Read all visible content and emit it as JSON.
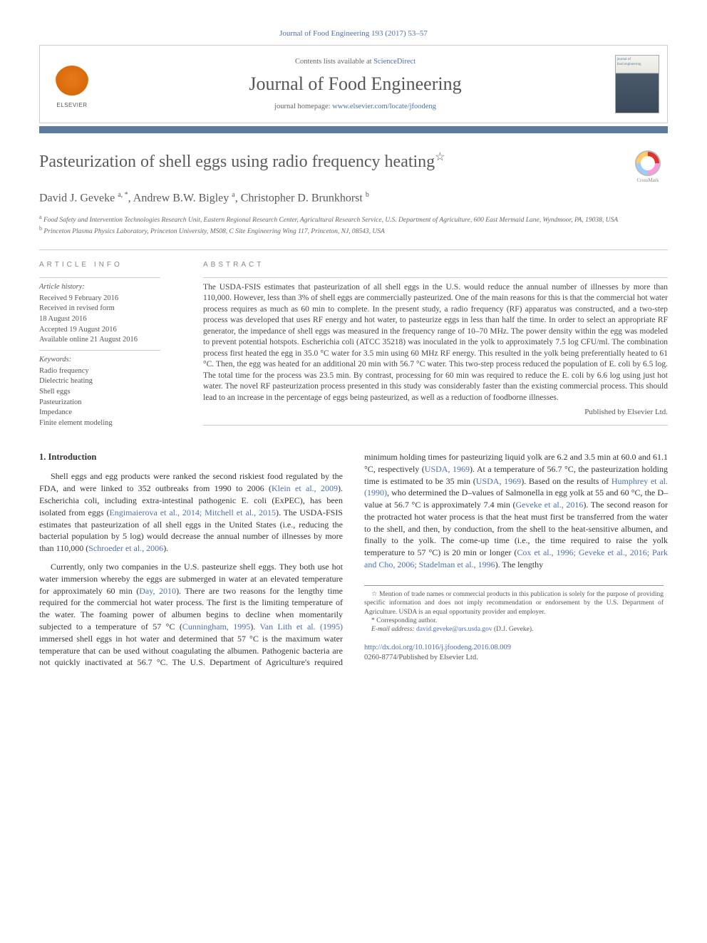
{
  "citation_top": "Journal of Food Engineering 193 (2017) 53–57",
  "banner": {
    "contents_prefix": "Contents lists available at ",
    "contents_link": "ScienceDirect",
    "journal_name": "Journal of Food Engineering",
    "homepage_prefix": "journal homepage: ",
    "homepage_link": "www.elsevier.com/locate/jfoodeng",
    "elsevier_label": "ELSEVIER",
    "cover_label_top": "journal of",
    "cover_label_bottom": "food engineering"
  },
  "title": "Pasteurization of shell eggs using radio frequency heating",
  "title_star": "☆",
  "crossmark_label": "CrossMark",
  "authors_html": "David J. Geveke <sup>a, *</sup>, Andrew B.W. Bigley <sup>a</sup>, Christopher D. Brunkhorst <sup>b</sup>",
  "affiliations": [
    "a Food Safety and Intervention Technologies Research Unit, Eastern Regional Research Center, Agricultural Research Service, U.S. Department of Agriculture, 600 East Mermaid Lane, Wyndmoor, PA, 19038, USA",
    "b Princeton Plasma Physics Laboratory, Princeton University, MS08, C Site Engineering Wing 117, Princeton, NJ, 08543, USA"
  ],
  "article_info": {
    "heading": "ARTICLE INFO",
    "history_label": "Article history:",
    "history": [
      "Received 9 February 2016",
      "Received in revised form",
      "18 August 2016",
      "Accepted 19 August 2016",
      "Available online 21 August 2016"
    ],
    "keywords_label": "Keywords:",
    "keywords": [
      "Radio frequency",
      "Dielectric heating",
      "Shell eggs",
      "Pasteurization",
      "Impedance",
      "Finite element modeling"
    ]
  },
  "abstract": {
    "heading": "ABSTRACT",
    "text": "The USDA-FSIS estimates that pasteurization of all shell eggs in the U.S. would reduce the annual number of illnesses by more than 110,000. However, less than 3% of shell eggs are commercially pasteurized. One of the main reasons for this is that the commercial hot water process requires as much as 60 min to complete. In the present study, a radio frequency (RF) apparatus was constructed, and a two-step process was developed that uses RF energy and hot water, to pasteurize eggs in less than half the time. In order to select an appropriate RF generator, the impedance of shell eggs was measured in the frequency range of 10–70 MHz. The power density within the egg was modeled to prevent potential hotspots. Escherichia coli (ATCC 35218) was inoculated in the yolk to approximately 7.5 log CFU/ml. The combination process first heated the egg in 35.0 °C water for 3.5 min using 60 MHz RF energy. This resulted in the yolk being preferentially heated to 61 °C. Then, the egg was heated for an additional 20 min with 56.7 °C water. This two-step process reduced the population of E. coli by 6.5 log. The total time for the process was 23.5 min. By contrast, processing for 60 min was required to reduce the E. coli by 6.6 log using just hot water. The novel RF pasteurization process presented in this study was considerably faster than the existing commercial process. This should lead to an increase in the percentage of eggs being pasteurized, as well as a reduction of foodborne illnesses.",
    "published": "Published by Elsevier Ltd."
  },
  "section1_heading": "1. Introduction",
  "para1_a": "Shell eggs and egg products were ranked the second riskiest food regulated by the FDA, and were linked to 352 outbreaks from 1990 to 2006 (",
  "para1_link1": "Klein et al., 2009",
  "para1_b": "). Escherichia coli, including extra-intestinal pathogenic E. coli (ExPEC), has been isolated from eggs (",
  "para1_link2": "Engimaierova et al., 2014; Mitchell et al., 2015",
  "para1_c": "). The USDA-FSIS estimates that pasteurization of all shell eggs in the United States (i.e., reducing the bacterial population by 5 log) would decrease the annual number of illnesses by more than 110,000 (",
  "para1_link3": "Schroeder et al., 2006",
  "para1_d": ").",
  "para2_a": "Currently, only two companies in the U.S. pasteurize shell eggs. They both use hot water immersion whereby the eggs are submerged in water at an elevated temperature for approximately ",
  "para2_b": "60 min (",
  "para2_link1": "Day, 2010",
  "para2_c": "). There are two reasons for the lengthy time required for the commercial hot water process. The first is the limiting temperature of the water. The foaming power of albumen begins to decline when momentarily subjected to a temperature of 57 °C (",
  "para2_link2": "Cunningham, 1995",
  "para2_d": "). ",
  "para2_link3": "Van Lith et al. (1995)",
  "para2_e": " immersed shell eggs in hot water and determined that 57 °C is the maximum water temperature that can be used without coagulating the albumen. Pathogenic bacteria are not quickly inactivated at 56.7 °C. The U.S. Department of Agriculture's required minimum holding times for pasteurizing liquid yolk are 6.2 and 3.5 min at 60.0 and 61.1 °C, respectively (",
  "para2_link4": "USDA, 1969",
  "para2_f": "). At a temperature of 56.7 °C, the pasteurization holding time is estimated to be 35 min (",
  "para2_link5": "USDA, 1969",
  "para2_g": "). Based on the results of ",
  "para2_link6": "Humphrey et al. (1990)",
  "para2_h": ", who determined the D–values of Salmonella in egg yolk at 55 and 60 °C, the D–value at 56.7 °C is approximately 7.4 min (",
  "para2_link7": "Geveke et al., 2016",
  "para2_i": "). The second reason for the protracted hot water process is that the heat must first be transferred from the water to the shell, and then, by conduction, from the shell to the heat-sensitive albumen, and finally to the yolk. The come-up time (i.e., the time required to raise the yolk temperature to 57 °C) is 20 min or longer (",
  "para2_link8": "Cox et al., 1996; Geveke et al., 2016; Park and Cho, 2006; Stadelman et al., 1996",
  "para2_j": "). The lengthy",
  "footnotes": {
    "f1": "☆ Mention of trade names or commercial products in this publication is solely for the purpose of providing specific information and does not imply recommendation or endorsement by the U.S. Department of Agriculture. USDA is an equal opportunity provider and employer.",
    "f2_label": "* Corresponding author.",
    "f2_email_label": "E-mail address: ",
    "f2_email": "david.geveke@ars.usda.gov",
    "f2_email_suffix": " (D.J. Geveke)."
  },
  "doi_line": "http://dx.doi.org/10.1016/j.jfoodeng.2016.08.009",
  "issn_line": "0260-8774/Published by Elsevier Ltd.",
  "colors": {
    "link": "#4a6fb2",
    "bar": "#5b7a9e",
    "heading_grey": "#5a5a5a",
    "border": "#cccccc",
    "text": "#333333",
    "muted": "#666666"
  }
}
